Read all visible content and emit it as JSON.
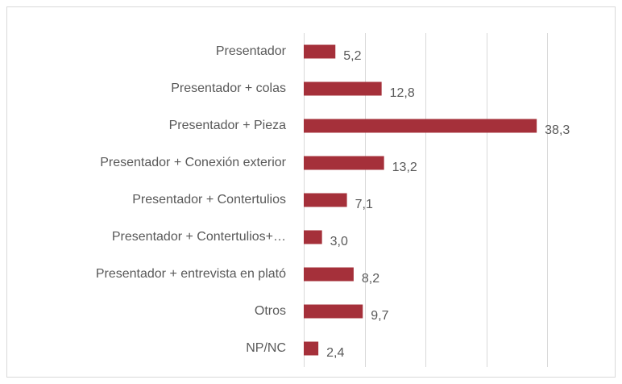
{
  "chart_data": {
    "type": "barh",
    "categories": [
      "Presentador",
      "Presentador + colas",
      "Presentador + Pieza",
      "Presentador + Conexión exterior",
      "Presentador + Contertulios",
      "Presentador + Contertulios+…",
      "Presentador + entrevista en plató",
      "Otros",
      "NP/NC"
    ],
    "values": [
      5.2,
      12.8,
      38.3,
      13.2,
      7.1,
      3.0,
      8.2,
      9.7,
      2.4
    ],
    "value_labels": [
      "5,2",
      "12,8",
      "38,3",
      "13,2",
      "7,1",
      "3,0",
      "8,2",
      "9,7",
      "2,4"
    ],
    "color": "#a5303a",
    "xlim": [
      0,
      40
    ],
    "xticks": [
      0,
      10,
      20,
      30,
      40
    ],
    "grid": true
  }
}
